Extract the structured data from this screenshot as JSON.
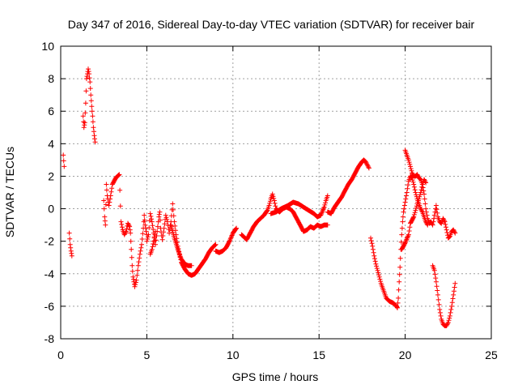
{
  "chart_data": {
    "type": "scatter",
    "title": "Day 347 of 2016, Sidereal Day-to-day VTEC variation (SDTVAR) for receiver bair",
    "xlabel": "GPS time / hours",
    "ylabel": "SDTVAR / TECUs",
    "xlim": [
      0,
      25
    ],
    "ylim": [
      -8,
      10
    ],
    "xticks": [
      0,
      5,
      10,
      15,
      20,
      25
    ],
    "yticks": [
      -8,
      -6,
      -4,
      -2,
      0,
      2,
      4,
      6,
      8,
      10
    ],
    "grid": true,
    "marker": "+",
    "series_color": "#ff0000",
    "segments": [
      [
        [
          0.15,
          3.3
        ],
        [
          0.2,
          2.6
        ]
      ],
      [
        [
          0.5,
          -1.5
        ],
        [
          0.55,
          -2.2
        ],
        [
          0.6,
          -2.6
        ],
        [
          0.65,
          -2.9
        ]
      ],
      [
        [
          1.3,
          5.7
        ],
        [
          1.35,
          5.0
        ],
        [
          1.4,
          5.3
        ],
        [
          1.45,
          6.5
        ],
        [
          1.5,
          8.0
        ],
        [
          1.55,
          8.3
        ],
        [
          1.6,
          8.6
        ],
        [
          1.65,
          8.3
        ],
        [
          1.7,
          7.8
        ],
        [
          1.75,
          7.0
        ],
        [
          1.8,
          6.3
        ],
        [
          1.85,
          5.7
        ],
        [
          1.9,
          5.0
        ],
        [
          1.95,
          4.5
        ],
        [
          2.0,
          4.1
        ]
      ],
      [
        [
          2.5,
          0.5
        ],
        [
          2.55,
          -0.5
        ],
        [
          2.6,
          -1.0
        ],
        [
          2.65,
          1.5
        ],
        [
          2.7,
          0.8
        ],
        [
          2.8,
          0.2
        ],
        [
          2.9,
          0.8
        ],
        [
          3.0,
          1.5
        ],
        [
          3.2,
          1.9
        ],
        [
          3.4,
          2.1
        ],
        [
          3.5,
          -0.8
        ],
        [
          3.6,
          -1.3
        ],
        [
          3.7,
          -1.6
        ],
        [
          3.8,
          -1.4
        ],
        [
          3.9,
          -0.9
        ],
        [
          4.0,
          -1.1
        ],
        [
          4.05,
          -1.5
        ],
        [
          4.1,
          -2.5
        ],
        [
          4.15,
          -3.5
        ],
        [
          4.2,
          -4.2
        ],
        [
          4.25,
          -4.5
        ],
        [
          4.3,
          -4.8
        ],
        [
          4.4,
          -4.4
        ],
        [
          4.5,
          -3.5
        ],
        [
          4.6,
          -2.8
        ],
        [
          4.7,
          -2.2
        ],
        [
          4.8,
          -1.2
        ],
        [
          4.85,
          -0.4
        ],
        [
          4.9,
          -1.0
        ],
        [
          5.0,
          -1.6
        ]
      ],
      [
        [
          5.0,
          -2.0
        ],
        [
          5.1,
          -1.6
        ],
        [
          5.2,
          -0.3
        ],
        [
          5.3,
          -0.8
        ],
        [
          5.4,
          -1.5
        ],
        [
          5.5,
          -2.2
        ],
        [
          5.6,
          -1.4
        ],
        [
          5.7,
          -0.5
        ],
        [
          5.75,
          -0.2
        ],
        [
          5.8,
          -1.2
        ],
        [
          5.9,
          -1.9
        ],
        [
          6.0,
          -1.2
        ],
        [
          6.1,
          -0.4
        ],
        [
          6.2,
          -0.8
        ],
        [
          6.3,
          -1.5
        ],
        [
          6.4,
          -0.8
        ],
        [
          6.5,
          0.3
        ],
        [
          6.6,
          -0.8
        ],
        [
          6.7,
          -1.6
        ],
        [
          6.8,
          -2.3
        ],
        [
          6.9,
          -2.8
        ],
        [
          7.0,
          -3.3
        ],
        [
          7.2,
          -3.7
        ],
        [
          7.4,
          -4.0
        ],
        [
          7.6,
          -4.1
        ],
        [
          7.8,
          -4.0
        ],
        [
          8.0,
          -3.7
        ],
        [
          8.2,
          -3.4
        ],
        [
          8.4,
          -3.1
        ],
        [
          8.6,
          -2.7
        ],
        [
          8.8,
          -2.4
        ],
        [
          9.0,
          -2.2
        ]
      ],
      [
        [
          6.4,
          -1.0
        ],
        [
          6.6,
          -1.8
        ],
        [
          6.8,
          -2.5
        ],
        [
          7.0,
          -3.1
        ],
        [
          7.2,
          -3.4
        ],
        [
          7.4,
          -3.5
        ],
        [
          7.6,
          -3.5
        ]
      ],
      [
        [
          5.5,
          -1.4
        ],
        [
          5.4,
          -2.0
        ],
        [
          5.3,
          -2.5
        ],
        [
          5.2,
          -2.8
        ]
      ],
      [
        [
          9.0,
          -2.6
        ],
        [
          9.2,
          -2.7
        ],
        [
          9.4,
          -2.6
        ],
        [
          9.6,
          -2.4
        ],
        [
          9.8,
          -2.0
        ],
        [
          10.0,
          -1.5
        ],
        [
          10.2,
          -1.2
        ]
      ],
      [
        [
          10.5,
          -1.6
        ],
        [
          10.7,
          -1.8
        ],
        [
          10.8,
          -1.9
        ],
        [
          11.0,
          -1.5
        ],
        [
          11.2,
          -1.1
        ],
        [
          11.4,
          -0.8
        ],
        [
          11.6,
          -0.6
        ],
        [
          11.8,
          -0.4
        ],
        [
          12.0,
          -0.1
        ],
        [
          12.1,
          0.2
        ],
        [
          12.2,
          0.6
        ],
        [
          12.3,
          0.9
        ],
        [
          12.4,
          0.5
        ],
        [
          12.5,
          0.0
        ],
        [
          12.7,
          -0.2
        ],
        [
          12.9,
          0.0
        ],
        [
          13.1,
          0.1
        ],
        [
          13.3,
          0.0
        ],
        [
          13.5,
          -0.2
        ],
        [
          13.7,
          -0.6
        ],
        [
          13.9,
          -1.0
        ],
        [
          14.1,
          -1.4
        ],
        [
          14.3,
          -1.3
        ],
        [
          14.5,
          -1.1
        ],
        [
          14.7,
          -1.2
        ],
        [
          14.9,
          -1.0
        ],
        [
          15.1,
          -1.1
        ],
        [
          15.3,
          -1.0
        ],
        [
          15.5,
          -1.0
        ]
      ],
      [
        [
          12.2,
          -0.3
        ],
        [
          12.5,
          -0.2
        ],
        [
          12.8,
          0.0
        ],
        [
          13.2,
          0.2
        ],
        [
          13.5,
          0.4
        ],
        [
          13.8,
          0.3
        ],
        [
          14.1,
          0.1
        ],
        [
          14.4,
          -0.1
        ],
        [
          14.7,
          -0.3
        ],
        [
          14.9,
          -0.5
        ],
        [
          15.1,
          -0.4
        ],
        [
          15.3,
          0.1
        ],
        [
          15.4,
          0.5
        ],
        [
          15.5,
          0.8
        ]
      ],
      [
        [
          15.5,
          -0.2
        ],
        [
          15.7,
          -0.3
        ],
        [
          15.9,
          0.1
        ],
        [
          16.1,
          0.4
        ],
        [
          16.3,
          0.7
        ],
        [
          16.5,
          1.1
        ],
        [
          16.7,
          1.5
        ],
        [
          16.9,
          1.8
        ],
        [
          17.1,
          2.2
        ],
        [
          17.3,
          2.6
        ],
        [
          17.5,
          2.9
        ],
        [
          17.6,
          3.0
        ],
        [
          17.7,
          2.9
        ],
        [
          17.8,
          2.7
        ],
        [
          17.9,
          2.5
        ]
      ],
      [
        [
          18.0,
          -1.8
        ],
        [
          18.1,
          -2.3
        ],
        [
          18.2,
          -2.9
        ],
        [
          18.3,
          -3.4
        ],
        [
          18.4,
          -3.8
        ],
        [
          18.5,
          -4.2
        ],
        [
          18.6,
          -4.6
        ],
        [
          18.7,
          -4.9
        ],
        [
          18.8,
          -5.2
        ],
        [
          18.9,
          -5.5
        ],
        [
          19.1,
          -5.7
        ],
        [
          19.3,
          -5.8
        ],
        [
          19.5,
          -6.0
        ],
        [
          19.55,
          -6.1
        ],
        [
          19.6,
          -5.5
        ],
        [
          19.65,
          -4.5
        ],
        [
          19.7,
          -3.6
        ],
        [
          19.75,
          -2.5
        ],
        [
          19.8,
          -1.6
        ],
        [
          19.85,
          -0.8
        ],
        [
          19.9,
          -0.2
        ],
        [
          20.0,
          0.4
        ],
        [
          20.1,
          1.0
        ],
        [
          20.2,
          1.7
        ],
        [
          20.3,
          2.0
        ],
        [
          20.4,
          1.9
        ],
        [
          20.5,
          1.5
        ],
        [
          20.6,
          1.0
        ],
        [
          20.7,
          0.6
        ],
        [
          20.8,
          0.3
        ],
        [
          20.9,
          0.0
        ],
        [
          21.0,
          -0.2
        ],
        [
          21.1,
          -0.5
        ],
        [
          21.2,
          -0.8
        ],
        [
          21.3,
          -1.0
        ]
      ],
      [
        [
          19.8,
          -2.5
        ],
        [
          20.0,
          -2.1
        ],
        [
          20.2,
          -1.6
        ],
        [
          20.3,
          -0.9
        ],
        [
          20.5,
          -0.5
        ],
        [
          20.6,
          -0.1
        ],
        [
          20.7,
          0.3
        ],
        [
          20.8,
          0.6
        ],
        [
          20.9,
          1.0
        ],
        [
          21.0,
          1.5
        ],
        [
          21.1,
          1.8
        ],
        [
          21.2,
          1.6
        ]
      ],
      [
        [
          20.0,
          3.6
        ],
        [
          20.1,
          3.3
        ],
        [
          20.2,
          3.0
        ],
        [
          20.3,
          2.6
        ],
        [
          20.4,
          2.2
        ],
        [
          20.5,
          2.0
        ],
        [
          20.6,
          2.0
        ],
        [
          20.7,
          2.1
        ],
        [
          20.8,
          1.9
        ],
        [
          20.9,
          1.8
        ],
        [
          21.0,
          1.5
        ],
        [
          21.1,
          0.9
        ],
        [
          21.2,
          0.0
        ],
        [
          21.3,
          -0.6
        ],
        [
          21.4,
          -0.9
        ],
        [
          21.5,
          -0.8
        ],
        [
          21.6,
          -1.0
        ],
        [
          21.7,
          -0.4
        ],
        [
          21.8,
          0.2
        ],
        [
          21.9,
          -0.5
        ],
        [
          22.0,
          -0.8
        ],
        [
          22.1,
          -0.9
        ],
        [
          22.2,
          -0.6
        ],
        [
          22.3,
          -0.8
        ],
        [
          22.4,
          -1.3
        ],
        [
          22.5,
          -1.8
        ],
        [
          22.6,
          -1.7
        ],
        [
          22.7,
          -1.4
        ],
        [
          22.8,
          -1.3
        ],
        [
          22.9,
          -1.5
        ]
      ],
      [
        [
          21.6,
          -3.5
        ],
        [
          21.7,
          -3.8
        ],
        [
          21.8,
          -4.5
        ],
        [
          21.9,
          -5.3
        ],
        [
          22.0,
          -6.2
        ],
        [
          22.1,
          -6.8
        ],
        [
          22.2,
          -7.1
        ],
        [
          22.3,
          -7.2
        ],
        [
          22.4,
          -7.2
        ],
        [
          22.5,
          -7.0
        ],
        [
          22.6,
          -6.6
        ],
        [
          22.7,
          -6.0
        ],
        [
          22.8,
          -5.3
        ],
        [
          22.9,
          -4.6
        ]
      ]
    ]
  }
}
